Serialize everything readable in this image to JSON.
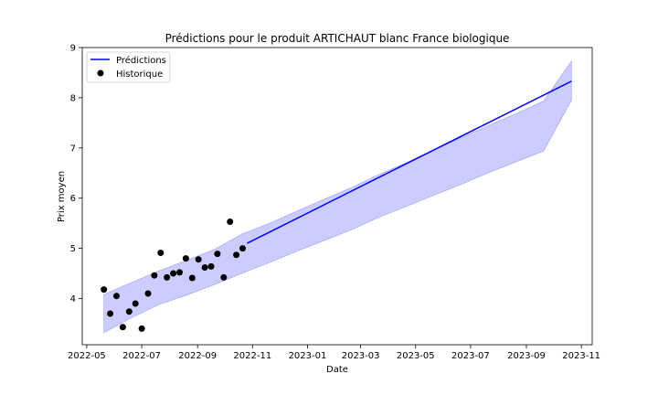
{
  "chart_data": {
    "type": "line",
    "title": "Prédictions pour le produit ARTICHAUT blanc France biologique",
    "xlabel": "Date",
    "ylabel": "Prix moyen",
    "xlim": [
      "2022-04-26",
      "2023-11-13"
    ],
    "ylim": [
      3.08,
      9.0
    ],
    "x_ticks": [
      "2022-05",
      "2022-07",
      "2022-09",
      "2022-11",
      "2023-01",
      "2023-03",
      "2023-05",
      "2023-07",
      "2023-09",
      "2023-11"
    ],
    "y_ticks": [
      4,
      5,
      6,
      7,
      8,
      9
    ],
    "grid": false,
    "legend": {
      "position": "top-left",
      "entries": [
        "Prédictions",
        "Historique"
      ]
    },
    "colors": {
      "prediction_line": "#0000ff",
      "interval_fill": "#ccccff",
      "interval_edge": "#9999ff",
      "historic_point": "#000000"
    },
    "prediction_interval": {
      "name": "",
      "x": [
        "2022-05-20",
        "2022-06-20",
        "2022-07-20",
        "2022-08-20",
        "2022-09-20",
        "2022-10-20",
        "2022-11-20",
        "2022-12-20",
        "2023-01-20",
        "2023-02-20",
        "2023-03-20",
        "2023-04-20",
        "2023-05-20",
        "2023-06-20",
        "2023-07-20",
        "2023-08-20",
        "2023-09-20",
        "2023-10-21"
      ],
      "lower": [
        3.32,
        3.62,
        3.88,
        4.07,
        4.28,
        4.5,
        4.72,
        4.94,
        5.16,
        5.38,
        5.61,
        5.83,
        6.05,
        6.27,
        6.5,
        6.72,
        6.94,
        7.95
      ],
      "upper": [
        4.08,
        4.32,
        4.55,
        4.76,
        4.98,
        5.28,
        5.5,
        5.74,
        5.98,
        6.22,
        6.46,
        6.7,
        6.95,
        7.2,
        7.44,
        7.68,
        7.93,
        8.73
      ]
    },
    "series": [
      {
        "name": "Prédictions",
        "type": "line",
        "x": [
          "2022-10-26",
          "2023-10-21"
        ],
        "y": [
          5.1,
          8.33
        ]
      },
      {
        "name": "Historique",
        "type": "scatter",
        "x": [
          "2022-05-20",
          "2022-05-27",
          "2022-06-03",
          "2022-06-10",
          "2022-06-17",
          "2022-06-24",
          "2022-07-01",
          "2022-07-08",
          "2022-07-15",
          "2022-07-22",
          "2022-07-29",
          "2022-08-05",
          "2022-08-12",
          "2022-08-19",
          "2022-08-26",
          "2022-09-02",
          "2022-09-09",
          "2022-09-16",
          "2022-09-23",
          "2022-09-30",
          "2022-10-07",
          "2022-10-14",
          "2022-10-21"
        ],
        "y": [
          4.18,
          3.7,
          4.05,
          3.43,
          3.74,
          3.9,
          3.4,
          4.1,
          4.46,
          4.91,
          4.42,
          4.5,
          4.52,
          4.8,
          4.41,
          4.78,
          4.62,
          4.64,
          4.89,
          4.42,
          5.53,
          4.87,
          5.0
        ]
      }
    ]
  }
}
